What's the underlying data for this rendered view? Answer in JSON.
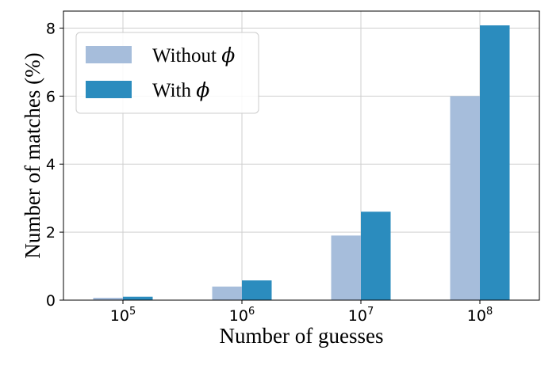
{
  "chart_data": {
    "type": "bar",
    "xlabel": "Number of guesses",
    "ylabel": "Number of matches (%)",
    "categories": [
      {
        "base": "10",
        "exp": "5"
      },
      {
        "base": "10",
        "exp": "6"
      },
      {
        "base": "10",
        "exp": "7"
      },
      {
        "base": "10",
        "exp": "8"
      }
    ],
    "series": [
      {
        "name": "Without",
        "name_symbol": "ϕ",
        "color": "#a6bddb",
        "values": [
          0.07,
          0.4,
          1.9,
          6.0
        ]
      },
      {
        "name": "With",
        "name_symbol": "ϕ",
        "color": "#2b8cbe",
        "values": [
          0.1,
          0.58,
          2.6,
          8.08
        ]
      }
    ],
    "ylim": [
      0,
      8.5
    ],
    "yticks": [
      0,
      2,
      4,
      6,
      8
    ],
    "grid": true,
    "legend_position": "top-left"
  }
}
